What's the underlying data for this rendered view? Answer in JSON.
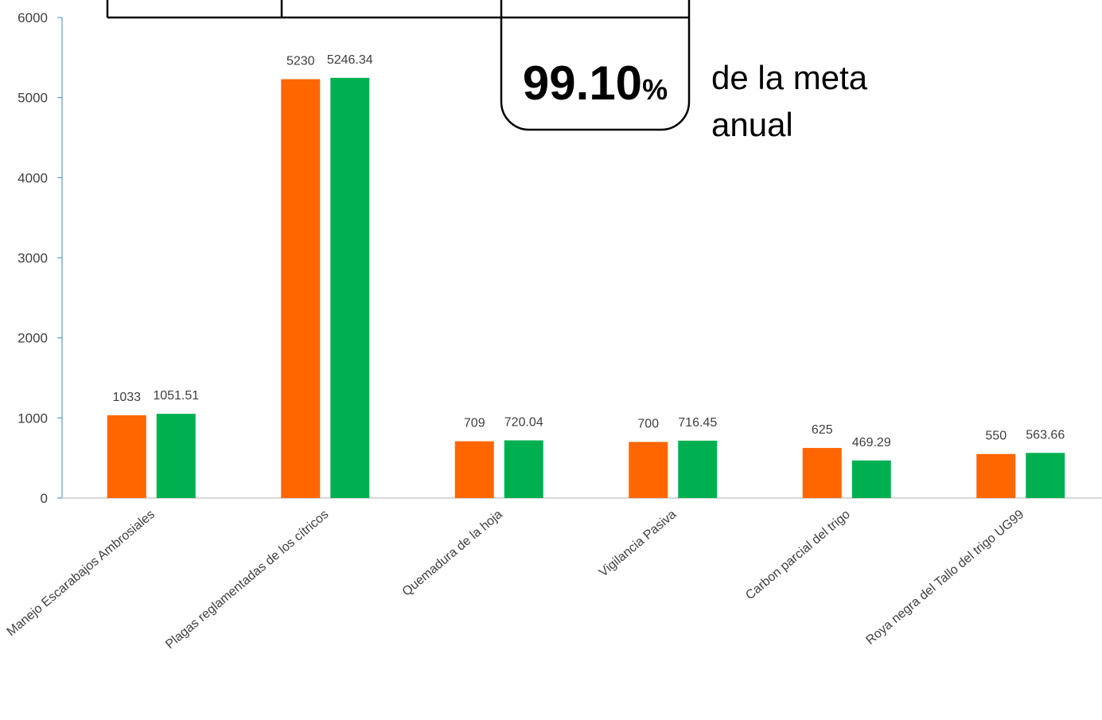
{
  "chart_data": {
    "type": "bar",
    "categories": [
      "Manejo Escarabajos Ambrosiales",
      "Plagas reglamentadas de los cítricos",
      "Quemadura de la hoja",
      "Vigilancia Pasiva",
      "Carbon parcial del trigo",
      "Roya negra del Tallo del trigo UG99"
    ],
    "series": [
      {
        "color": "#ff6600",
        "values": [
          1033,
          5230,
          709,
          700,
          625,
          550
        ]
      },
      {
        "color": "#00b050",
        "values": [
          1051.51,
          5246.34,
          720.04,
          716.45,
          469.29,
          563.66
        ]
      }
    ],
    "ylim": [
      0,
      6000
    ],
    "yticks": [
      0,
      1000,
      2000,
      3000,
      4000,
      5000,
      6000
    ],
    "annotation": {
      "value": "99.10",
      "unit": "%",
      "caption": [
        "de la meta",
        "anual"
      ]
    }
  }
}
